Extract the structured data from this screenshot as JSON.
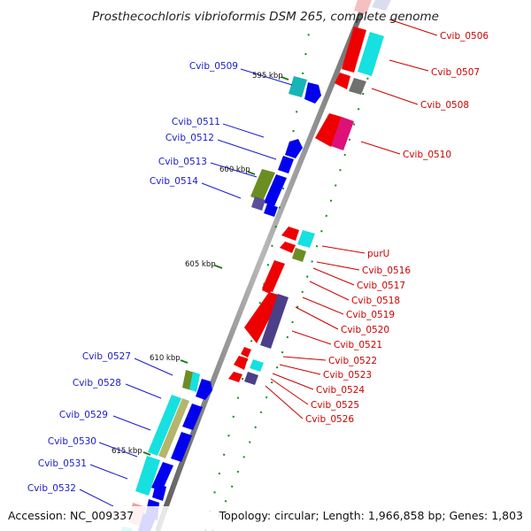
{
  "title": "Prosthecochloris vibrioformis DSM 265, complete genome",
  "footer": {
    "accession": "Accession: NC_009337",
    "topology": "Topology: circular; Length: 1,966,858 bp; Genes: 1,803"
  },
  "ticks": [
    "595 kbp",
    "600 kbp",
    "605 kbp",
    "610 kbp",
    "615 kbp"
  ],
  "left_labels": [
    "Cvib_0509",
    "Cvib_0511",
    "Cvib_0512",
    "Cvib_0513",
    "Cvib_0514",
    "Cvib_0527",
    "Cvib_0528",
    "Cvib_0529",
    "Cvib_0530",
    "Cvib_0531",
    "Cvib_0532"
  ],
  "right_labels": [
    "Cvib_0506",
    "Cvib_0507",
    "Cvib_0508",
    "Cvib_0510",
    "purU",
    "Cvib_0516",
    "Cvib_0517",
    "Cvib_0518",
    "Cvib_0519",
    "Cvib_0520",
    "Cvib_0521",
    "Cvib_0522",
    "Cvib_0523",
    "Cvib_0524",
    "Cvib_0525",
    "Cvib_0526"
  ],
  "colors": {
    "backbone": "#8a8a8a",
    "cds_forward": "#0000ee",
    "cds_reverse": "#ee0000",
    "left_label": "#1a1acc",
    "right_label": "#cc0000",
    "gc_dots": "#1a8a1a"
  }
}
